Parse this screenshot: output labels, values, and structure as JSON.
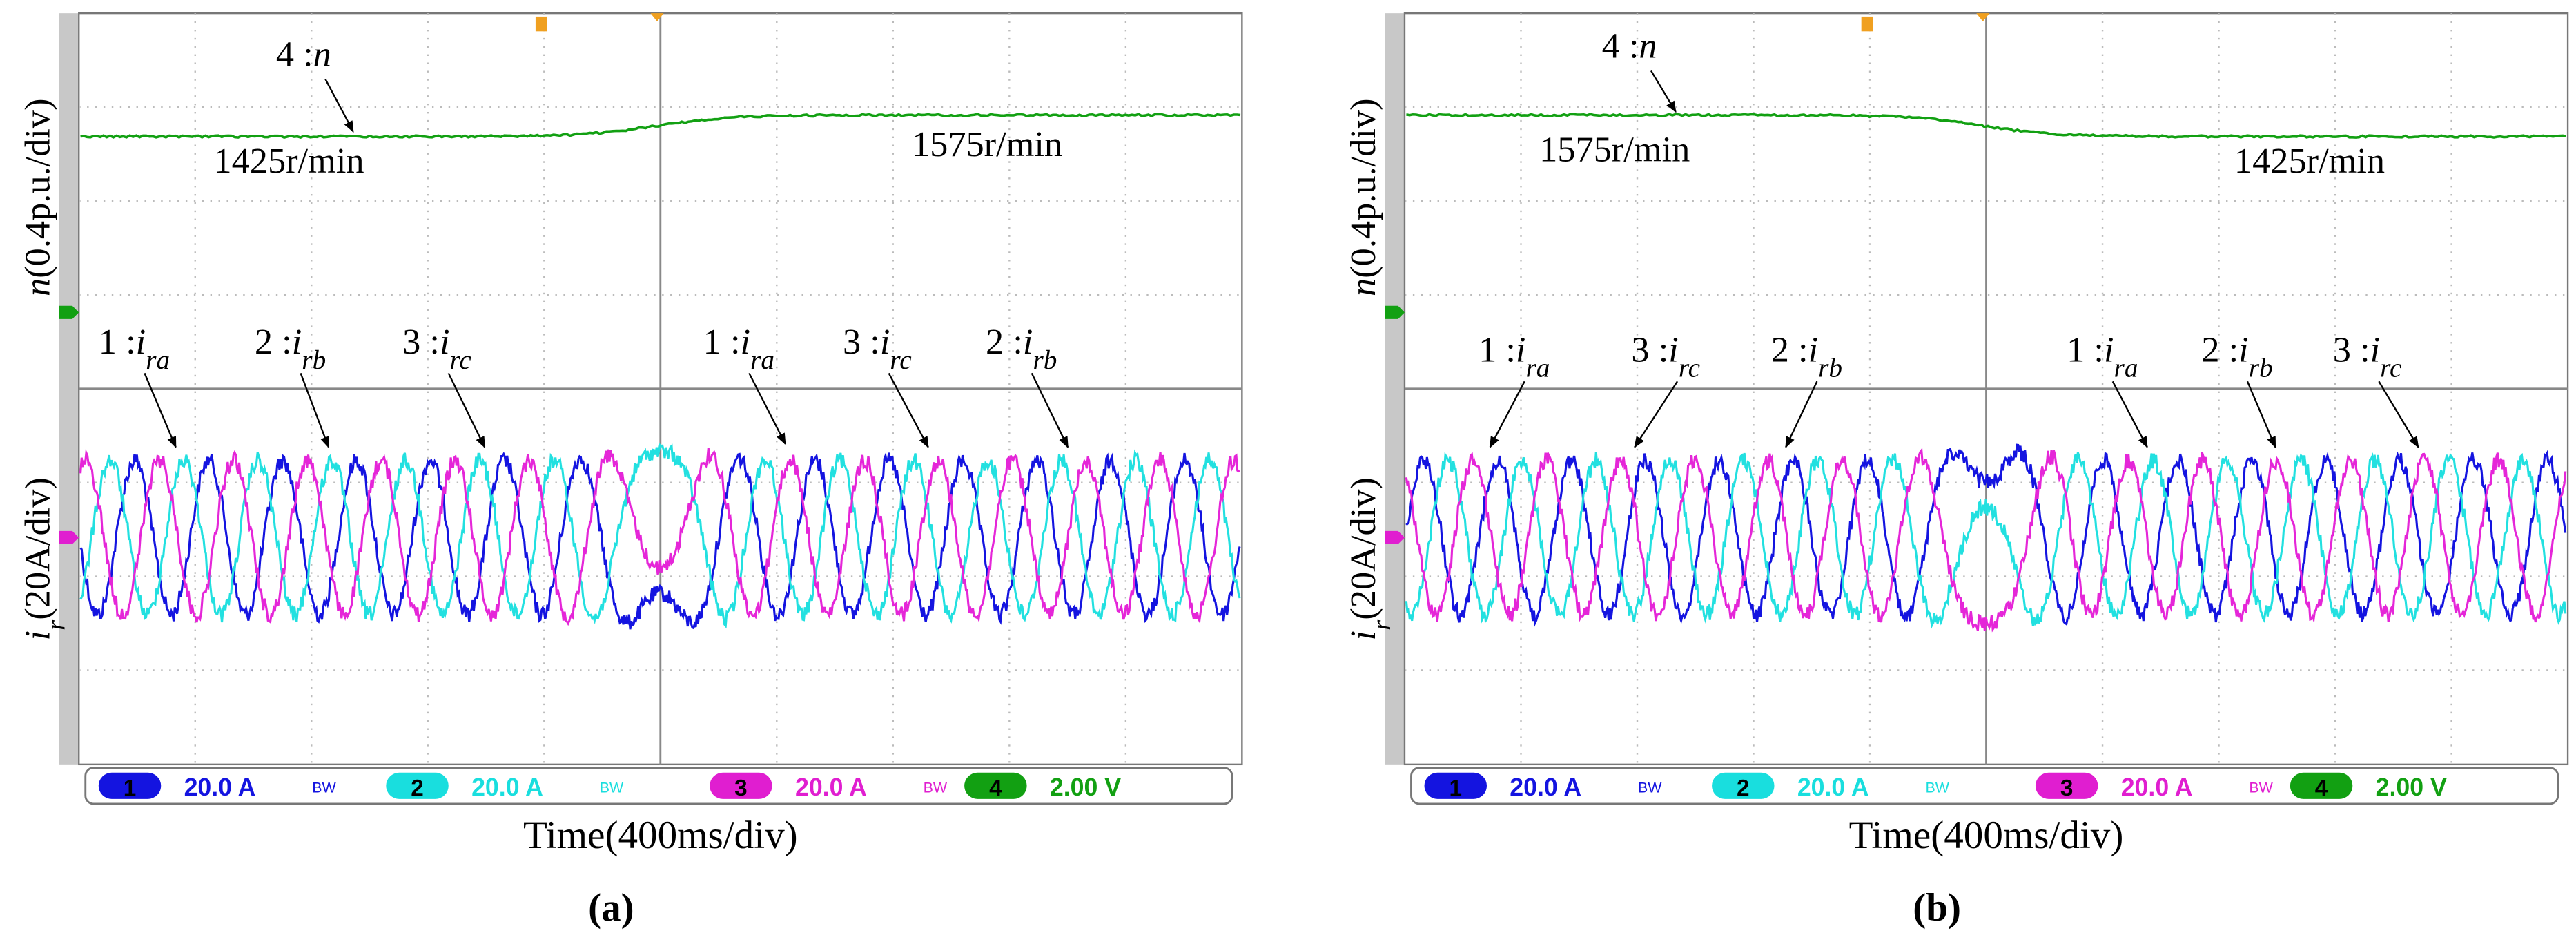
{
  "panels": [
    {
      "speed_label": {
        "channel": "4 :",
        "symbol": "n"
      },
      "speed_left": "1425r/min",
      "speed_right": "1575r/min",
      "current_labels": [
        {
          "channel": "1 :",
          "symbol": "i",
          "sub": "ra"
        },
        {
          "channel": "2 :",
          "symbol": "i",
          "sub": "rb"
        },
        {
          "channel": "3 :",
          "symbol": "i",
          "sub": "rc"
        },
        {
          "channel": "1 :",
          "symbol": "i",
          "sub": "ra"
        },
        {
          "channel": "3 :",
          "symbol": "i",
          "sub": "rc"
        },
        {
          "channel": "2 :",
          "symbol": "i",
          "sub": "rb"
        }
      ],
      "y_axis_top": {
        "symbol": "n",
        "unit": "(0.4p.u./div)"
      },
      "y_axis_bottom": {
        "symbol": "i",
        "sub": "r",
        "unit": "(20A/div)"
      },
      "x_axis": "Time(400ms/div)",
      "status": [
        {
          "num": "1",
          "text": "20.0 A",
          "bw": "BW"
        },
        {
          "num": "2",
          "text": "20.0 A",
          "bw": "BW"
        },
        {
          "num": "3",
          "text": "20.0 A",
          "bw": "BW"
        },
        {
          "num": "4",
          "text": "2.00 V"
        }
      ],
      "caption": "(a)"
    },
    {
      "speed_label": {
        "channel": "4 :",
        "symbol": "n"
      },
      "speed_left": "1575r/min",
      "speed_right": "1425r/min",
      "current_labels": [
        {
          "channel": "1 :",
          "symbol": "i",
          "sub": "ra"
        },
        {
          "channel": "3 :",
          "symbol": "i",
          "sub": "rc"
        },
        {
          "channel": "2 :",
          "symbol": "i",
          "sub": "rb"
        },
        {
          "channel": "1 :",
          "symbol": "i",
          "sub": "ra"
        },
        {
          "channel": "2 :",
          "symbol": "i",
          "sub": "rb"
        },
        {
          "channel": "3 :",
          "symbol": "i",
          "sub": "rc"
        }
      ],
      "y_axis_top": {
        "symbol": "n",
        "unit": "(0.4p.u./div)"
      },
      "y_axis_bottom": {
        "symbol": "i",
        "sub": "r",
        "unit": "(20A/div)"
      },
      "x_axis": "Time(400ms/div)",
      "status": [
        {
          "num": "1",
          "text": "20.0 A",
          "bw": "BW"
        },
        {
          "num": "2",
          "text": "20.0 A",
          "bw": "BW"
        },
        {
          "num": "3",
          "text": "20.0 A",
          "bw": "BW"
        },
        {
          "num": "4",
          "text": "2.00 V"
        }
      ],
      "caption": "(b)"
    }
  ]
}
